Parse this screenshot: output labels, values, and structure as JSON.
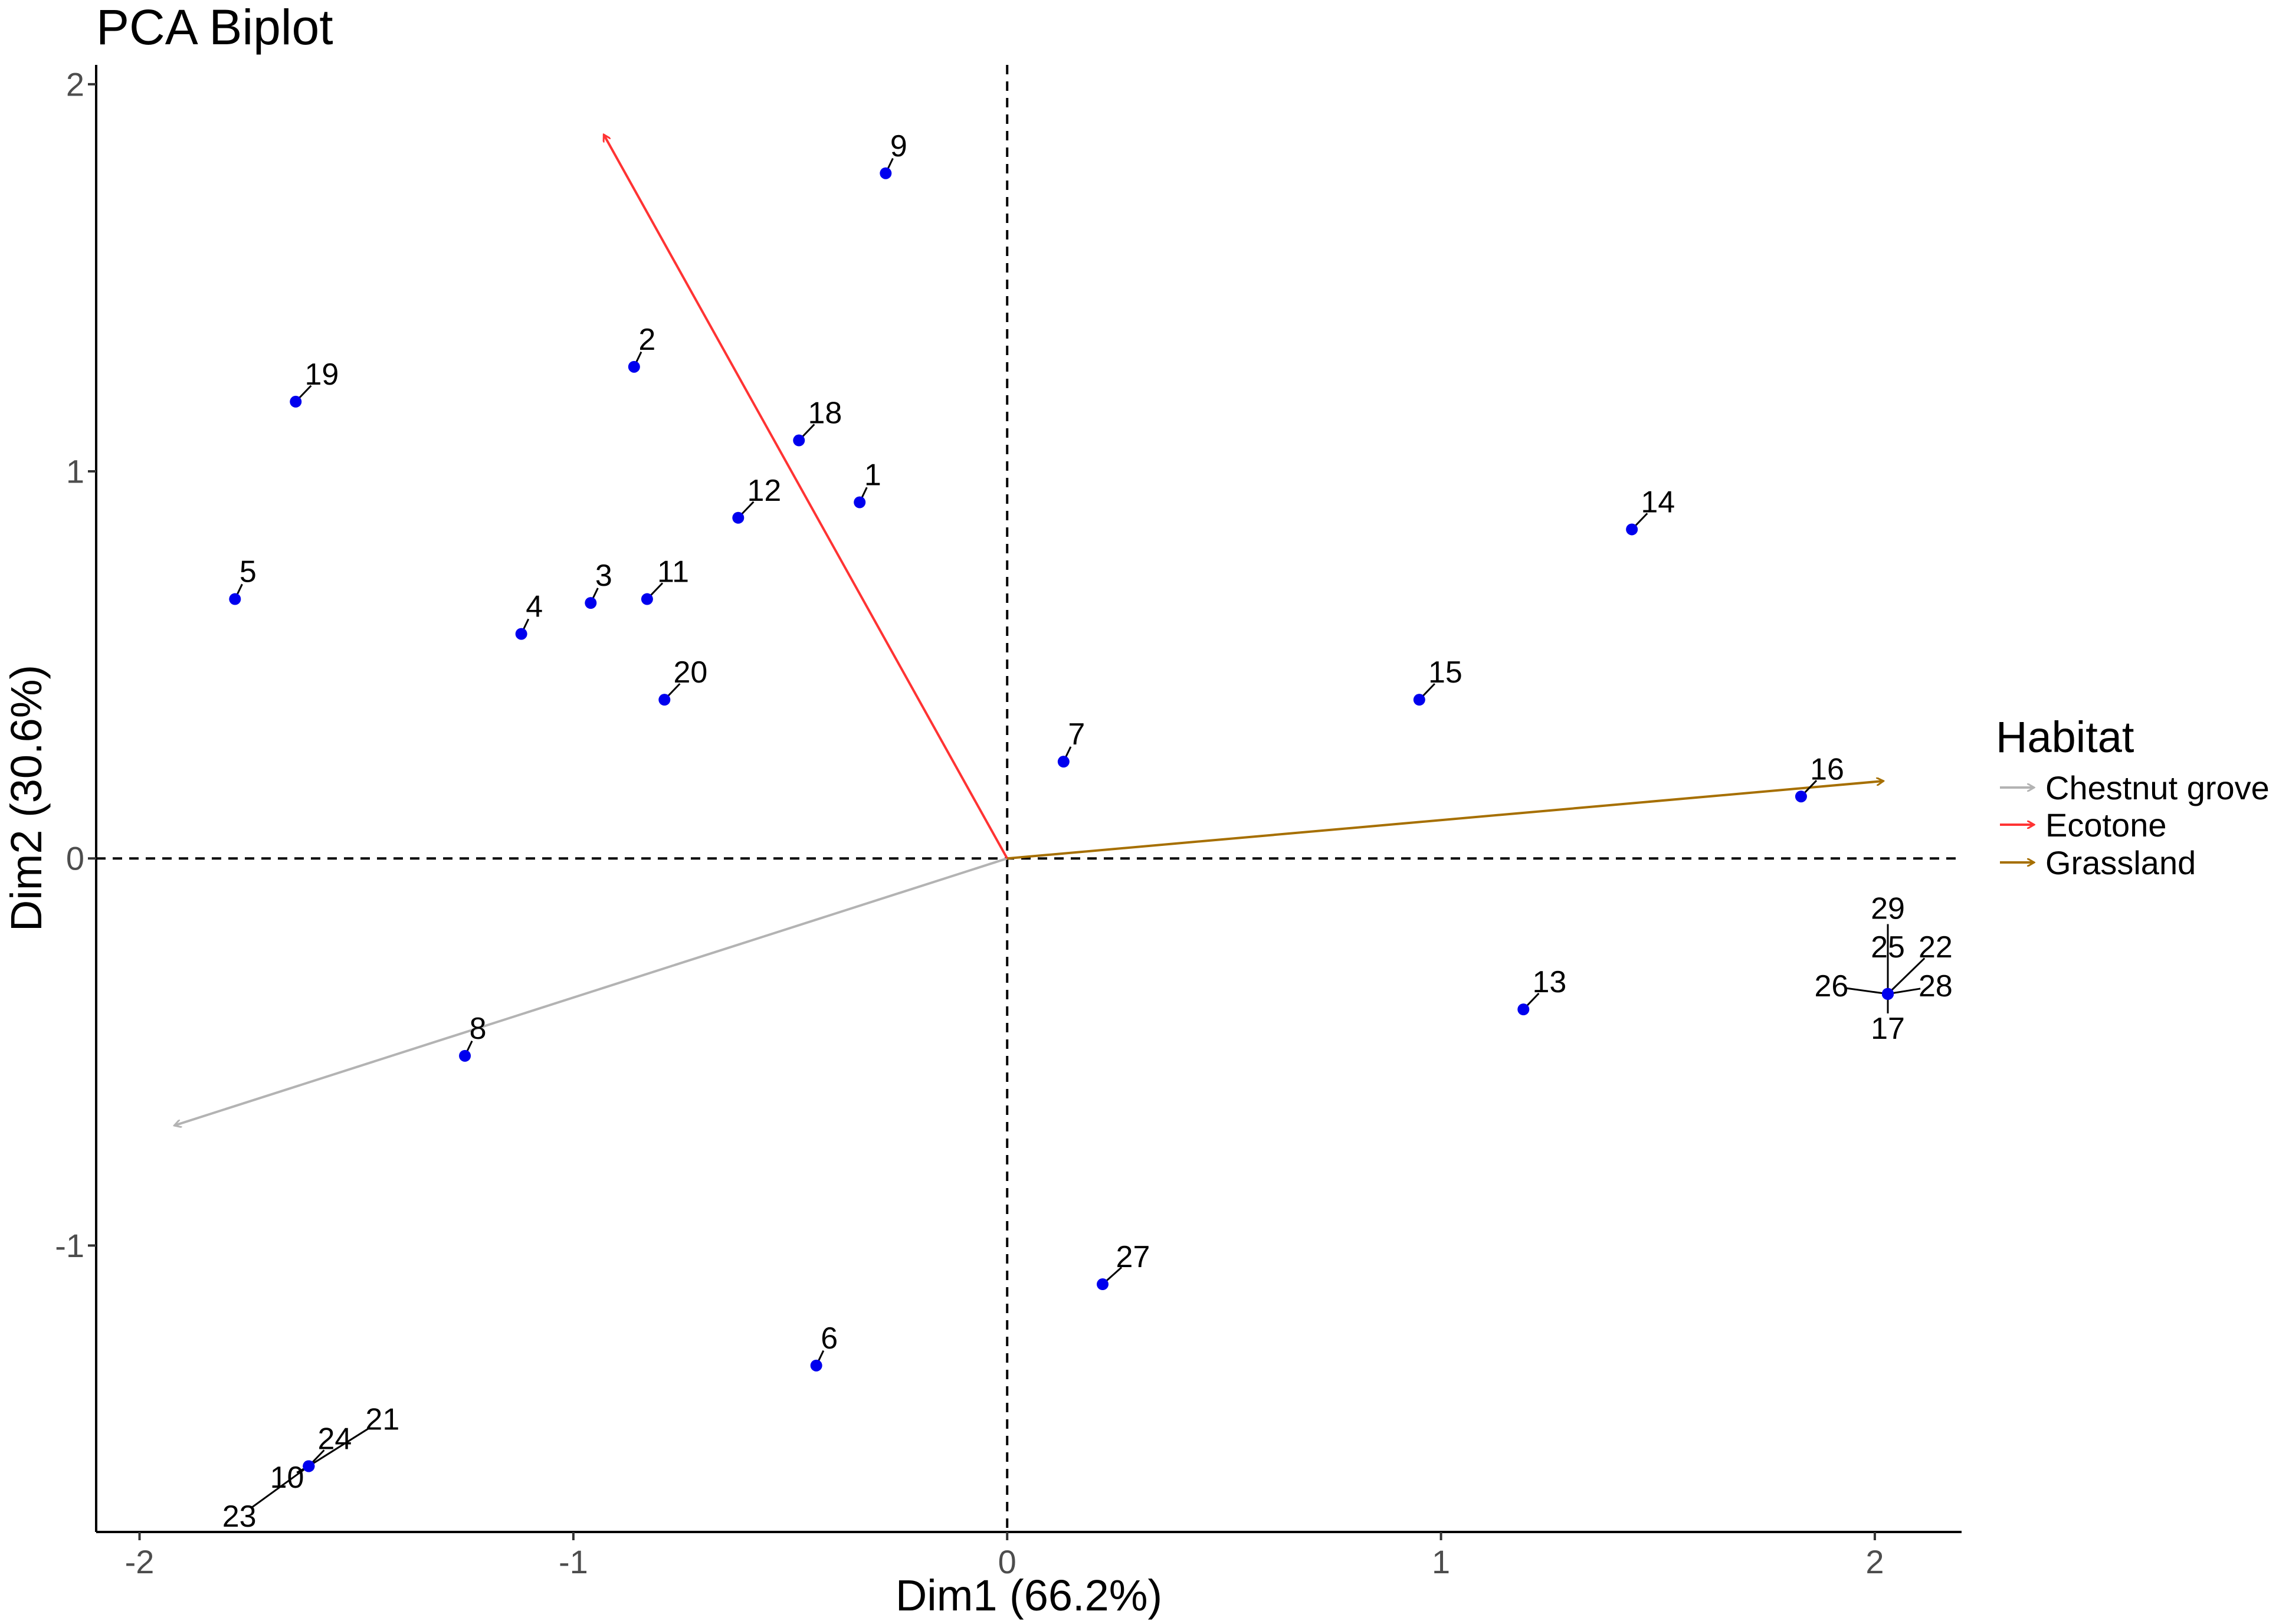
{
  "chart_data": {
    "type": "scatter",
    "title": "PCA Biplot",
    "xlabel": "Dim1 (66.2%)",
    "ylabel": "Dim2 (30.6%)",
    "xlim": [
      -2.1,
      2.2
    ],
    "ylim": [
      -1.74,
      2.05
    ],
    "xticks": [
      -2,
      -1,
      0,
      1,
      2
    ],
    "xtick_labels": [
      "-2",
      "-1",
      "0",
      "1",
      "2"
    ],
    "yticks": [
      -1,
      0,
      1,
      2
    ],
    "ytick_labels": [
      "-1",
      "0",
      "1",
      "2"
    ],
    "reference_lines": {
      "x": 0,
      "y": 0,
      "style": "dashed"
    },
    "point_color": "#0000ee",
    "points": [
      {
        "label": "1",
        "x": -0.34,
        "y": 0.92,
        "label_x": -0.31,
        "label_y": 0.99
      },
      {
        "label": "2",
        "x": -0.86,
        "y": 1.27,
        "label_x": -0.83,
        "label_y": 1.34
      },
      {
        "label": "3",
        "x": -0.96,
        "y": 0.66,
        "label_x": -0.93,
        "label_y": 0.73
      },
      {
        "label": "4",
        "x": -1.12,
        "y": 0.58,
        "label_x": -1.09,
        "label_y": 0.65
      },
      {
        "label": "5",
        "x": -1.78,
        "y": 0.67,
        "label_x": -1.75,
        "label_y": 0.74
      },
      {
        "label": "6",
        "x": -0.44,
        "y": -1.31,
        "label_x": -0.41,
        "label_y": -1.24
      },
      {
        "label": "7",
        "x": 0.13,
        "y": 0.25,
        "label_x": 0.16,
        "label_y": 0.32
      },
      {
        "label": "8",
        "x": -1.25,
        "y": -0.51,
        "label_x": -1.22,
        "label_y": -0.44
      },
      {
        "label": "9",
        "x": -0.28,
        "y": 1.77,
        "label_x": -0.25,
        "label_y": 1.84
      },
      {
        "label": "10",
        "x": -1.61,
        "y": -1.57,
        "label_x": -1.66,
        "label_y": -1.6
      },
      {
        "label": "11",
        "x": -0.83,
        "y": 0.67,
        "label_x": -0.77,
        "label_y": 0.74
      },
      {
        "label": "12",
        "x": -0.62,
        "y": 0.88,
        "label_x": -0.56,
        "label_y": 0.95
      },
      {
        "label": "13",
        "x": 1.19,
        "y": -0.39,
        "label_x": 1.25,
        "label_y": -0.32
      },
      {
        "label": "14",
        "x": 1.44,
        "y": 0.85,
        "label_x": 1.5,
        "label_y": 0.92
      },
      {
        "label": "15",
        "x": 0.95,
        "y": 0.41,
        "label_x": 1.01,
        "label_y": 0.48
      },
      {
        "label": "16",
        "x": 1.83,
        "y": 0.16,
        "label_x": 1.89,
        "label_y": 0.23
      },
      {
        "label": "17",
        "x": 2.03,
        "y": -0.35,
        "label_x": 2.03,
        "label_y": -0.44
      },
      {
        "label": "18",
        "x": -0.48,
        "y": 1.08,
        "label_x": -0.42,
        "label_y": 1.15
      },
      {
        "label": "19",
        "x": -1.64,
        "y": 1.18,
        "label_x": -1.58,
        "label_y": 1.25
      },
      {
        "label": "20",
        "x": -0.79,
        "y": 0.41,
        "label_x": -0.73,
        "label_y": 0.48
      },
      {
        "label": "21",
        "x": -1.61,
        "y": -1.57,
        "label_x": -1.44,
        "label_y": -1.45
      },
      {
        "label": "22",
        "x": 2.03,
        "y": -0.35,
        "label_x": 2.14,
        "label_y": -0.23
      },
      {
        "label": "23",
        "x": -1.61,
        "y": -1.57,
        "label_x": -1.77,
        "label_y": -1.7
      },
      {
        "label": "24",
        "x": -1.61,
        "y": -1.57,
        "label_x": -1.55,
        "label_y": -1.5
      },
      {
        "label": "25",
        "x": 2.03,
        "y": -0.35,
        "label_x": 2.03,
        "label_y": -0.23
      },
      {
        "label": "26",
        "x": 2.03,
        "y": -0.35,
        "label_x": 1.9,
        "label_y": -0.33
      },
      {
        "label": "27",
        "x": 0.22,
        "y": -1.1,
        "label_x": 0.29,
        "label_y": -1.03
      },
      {
        "label": "28",
        "x": 2.03,
        "y": -0.35,
        "label_x": 2.14,
        "label_y": -0.33
      },
      {
        "label": "29",
        "x": 2.03,
        "y": -0.35,
        "label_x": 2.03,
        "label_y": -0.13
      }
    ],
    "arrows": [
      {
        "name": "Chestnut grove",
        "x": -1.92,
        "y": -0.69,
        "color": "#b3b3b3"
      },
      {
        "name": "Ecotone",
        "x": -0.93,
        "y": 1.87,
        "color": "#ff3333"
      },
      {
        "name": "Grassland",
        "x": 2.02,
        "y": 0.2,
        "color": "#a66f00"
      }
    ],
    "legend": {
      "title": "Habitat",
      "position": "right",
      "items": [
        {
          "label": "Chestnut grove",
          "color": "#b3b3b3"
        },
        {
          "label": "Ecotone",
          "color": "#ff3333"
        },
        {
          "label": "Grassland",
          "color": "#a66f00"
        }
      ]
    }
  }
}
